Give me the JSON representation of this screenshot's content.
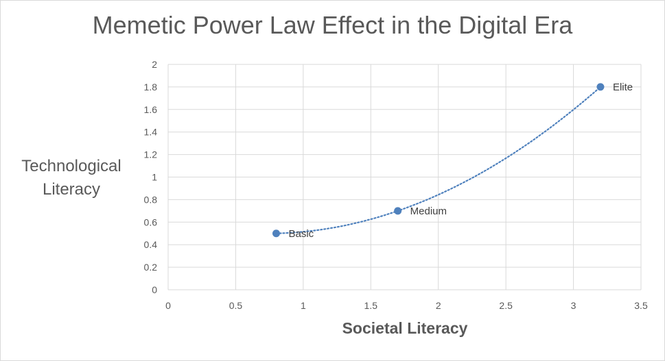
{
  "chart_data": {
    "type": "scatter",
    "title": "Memetic Power Law Effect in the Digital Era",
    "xlabel": "Societal Literacy",
    "ylabel": "Technological Literacy",
    "xlim": [
      0,
      3.5
    ],
    "ylim": [
      0,
      2
    ],
    "x_ticks": [
      "0",
      "0.5",
      "1",
      "1.5",
      "2",
      "2.5",
      "3",
      "3.5"
    ],
    "y_ticks": [
      "0",
      "0.2",
      "0.4",
      "0.6",
      "0.8",
      "1",
      "1.2",
      "1.4",
      "1.6",
      "1.8",
      "2"
    ],
    "grid": true,
    "trendline": "dotted",
    "color": "#4f81bd",
    "points": [
      {
        "x": 0.8,
        "y": 0.5,
        "label": "Basic"
      },
      {
        "x": 1.7,
        "y": 0.7,
        "label": "Medium"
      },
      {
        "x": 3.2,
        "y": 1.8,
        "label": "Elite"
      }
    ]
  }
}
